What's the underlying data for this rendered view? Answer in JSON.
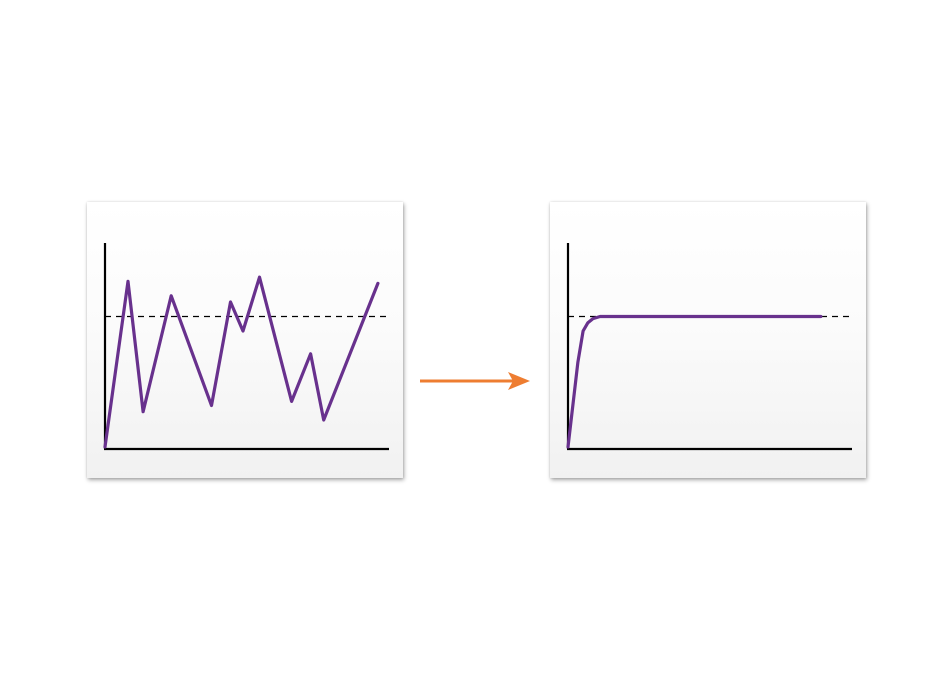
{
  "colors": {
    "series": "#68318d",
    "axis": "#000000",
    "target_line": "#000000",
    "arrow": "#ee7d31",
    "panel_top": "#ffffff",
    "panel_bottom": "#f1f1f1"
  },
  "icons": {
    "transition": "arrow-right-icon"
  },
  "chart_data": [
    {
      "type": "line",
      "title": "",
      "xlabel": "",
      "ylabel": "",
      "xlim": [
        0,
        100
      ],
      "ylim": [
        0,
        100
      ],
      "grid": false,
      "target_level": 64,
      "series": [
        {
          "x": [
            0,
            8.1,
            13.4,
            23.3,
            37.5,
            44.2,
            48.6,
            54.4,
            65.7,
            72.4,
            77.0,
            96.1
          ],
          "y": [
            1,
            81,
            18,
            74,
            21,
            71,
            57,
            83,
            23,
            46,
            14,
            80
          ]
        }
      ]
    },
    {
      "type": "line",
      "title": "",
      "xlabel": "",
      "ylabel": "",
      "xlim": [
        0,
        100
      ],
      "ylim": [
        0,
        100
      ],
      "grid": false,
      "target_level": 64,
      "series": [
        {
          "x": [
            0,
            3.5,
            5.3,
            7.0,
            8.8,
            11.3,
            15.0,
            30.0,
            60.0,
            89.0
          ],
          "y": [
            1,
            42,
            57,
            61,
            63,
            64,
            64,
            64,
            64,
            64
          ]
        }
      ]
    }
  ]
}
